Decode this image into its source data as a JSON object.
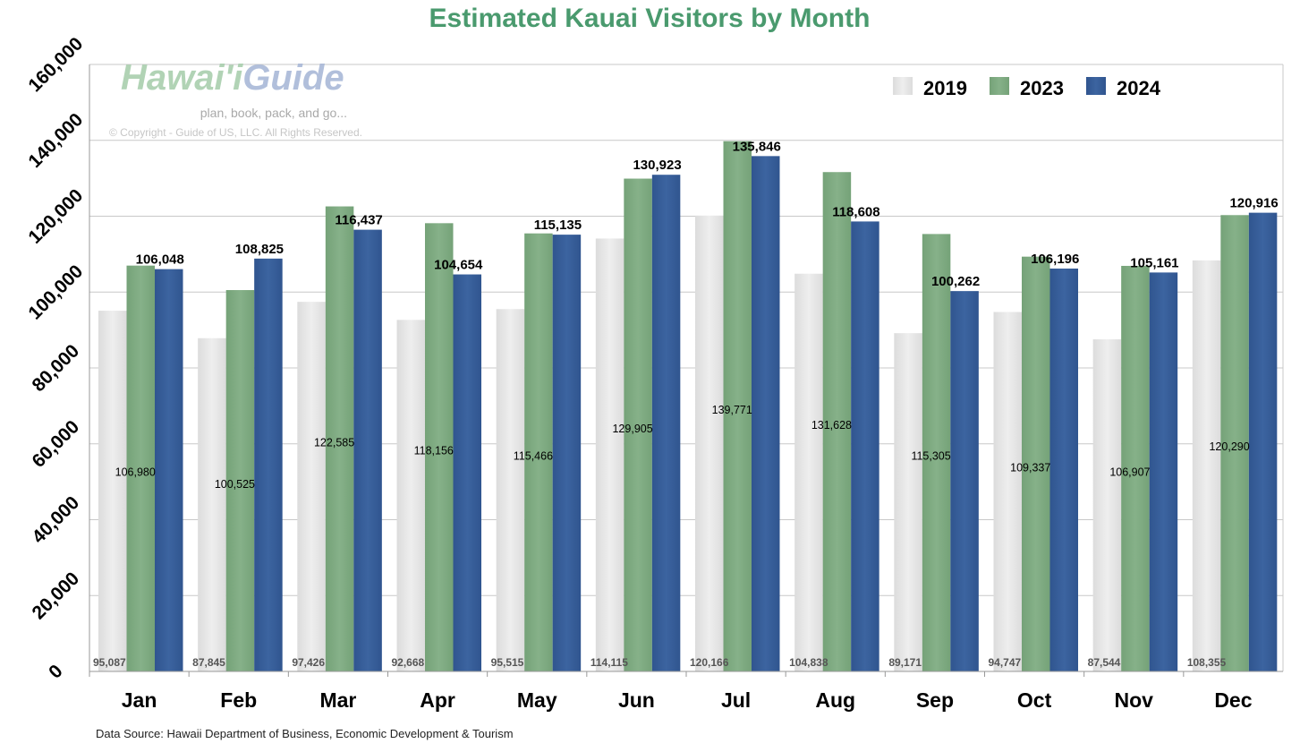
{
  "chart_data": {
    "type": "bar",
    "title": "Estimated Kauai Visitors by Month",
    "xlabel": "",
    "ylabel": "",
    "ylim": [
      0,
      160000
    ],
    "yticks": [
      0,
      20000,
      40000,
      60000,
      80000,
      100000,
      120000,
      140000,
      160000
    ],
    "ytick_labels": [
      "0",
      "20,000",
      "40,000",
      "60,000",
      "80,000",
      "100,000",
      "120,000",
      "140,000",
      "160,000"
    ],
    "grid": true,
    "legend_position": "top-right",
    "categories": [
      "Jan",
      "Feb",
      "Mar",
      "Apr",
      "May",
      "Jun",
      "Jul",
      "Aug",
      "Sep",
      "Oct",
      "Nov",
      "Dec"
    ],
    "series": [
      {
        "name": "2019",
        "color": "#e6e6e6",
        "values": [
          95087,
          87845,
          97426,
          92668,
          95515,
          114115,
          120166,
          104838,
          89171,
          94747,
          87544,
          108355
        ]
      },
      {
        "name": "2023",
        "color": "#7fab82",
        "values": [
          106980,
          100525,
          122585,
          118156,
          115466,
          129905,
          139771,
          131628,
          115305,
          109337,
          106907,
          120290
        ]
      },
      {
        "name": "2024",
        "color": "#375d98",
        "values": [
          106048,
          108825,
          116437,
          104654,
          115135,
          130923,
          135846,
          118608,
          100262,
          106196,
          105161,
          120916
        ]
      }
    ],
    "source": "Data Source: Hawaii Department of Business, Economic Development & Tourism"
  },
  "watermark": {
    "logo_text": "Hawai'iGuide",
    "tagline": "plan, book, pack, and go...",
    "copyright": "© Copyright - Guide of US, LLC. All Rights Reserved."
  },
  "colors": {
    "title": "#4a9a6e",
    "grid": "#c8c8c8"
  }
}
